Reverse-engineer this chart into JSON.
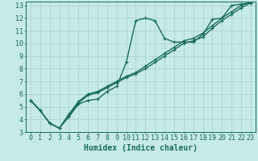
{
  "xlabel": "Humidex (Indice chaleur)",
  "ylabel": "",
  "bg_color": "#c5eae8",
  "grid_color": "#aed4d2",
  "line_color": "#1a6b5a",
  "xlim": [
    -0.5,
    23.5
  ],
  "ylim": [
    3,
    13.3
  ],
  "xticks": [
    0,
    1,
    2,
    3,
    4,
    5,
    6,
    7,
    8,
    9,
    10,
    11,
    12,
    13,
    14,
    15,
    16,
    17,
    18,
    19,
    20,
    21,
    22,
    23
  ],
  "yticks": [
    3,
    4,
    5,
    6,
    7,
    8,
    9,
    10,
    11,
    12,
    13
  ],
  "line1_x": [
    0,
    1,
    2,
    3,
    4,
    5,
    6,
    7,
    8,
    9,
    10,
    11,
    12,
    13,
    14,
    15,
    16,
    17,
    18,
    19,
    20,
    21,
    22,
    23
  ],
  "line1_y": [
    5.5,
    4.7,
    3.7,
    3.3,
    4.2,
    5.2,
    5.5,
    5.6,
    6.2,
    6.6,
    8.5,
    11.8,
    12.0,
    11.8,
    10.4,
    10.1,
    10.1,
    10.1,
    10.7,
    11.9,
    12.0,
    13.0,
    13.1,
    13.2
  ],
  "line2_x": [
    0,
    1,
    2,
    3,
    4,
    5,
    6,
    7,
    8,
    9,
    10,
    11,
    12,
    13,
    14,
    15,
    16,
    17,
    18,
    19,
    20,
    21,
    22,
    23
  ],
  "line2_y": [
    5.5,
    4.7,
    3.7,
    3.3,
    4.3,
    5.3,
    5.9,
    6.1,
    6.5,
    6.9,
    7.3,
    7.6,
    8.0,
    8.5,
    9.0,
    9.5,
    10.0,
    10.2,
    10.5,
    11.2,
    11.8,
    12.3,
    12.8,
    13.2
  ],
  "line3_x": [
    0,
    1,
    2,
    3,
    4,
    5,
    6,
    7,
    8,
    9,
    10,
    11,
    12,
    13,
    14,
    15,
    16,
    17,
    18,
    19,
    20,
    21,
    22,
    23
  ],
  "line3_y": [
    5.5,
    4.7,
    3.7,
    3.3,
    4.4,
    5.4,
    6.0,
    6.2,
    6.6,
    7.0,
    7.4,
    7.7,
    8.2,
    8.7,
    9.2,
    9.7,
    10.2,
    10.4,
    10.8,
    11.4,
    12.0,
    12.5,
    13.0,
    13.25
  ],
  "marker_size": 3,
  "line_width": 1.0,
  "font_size_label": 7,
  "font_size_tick": 6
}
